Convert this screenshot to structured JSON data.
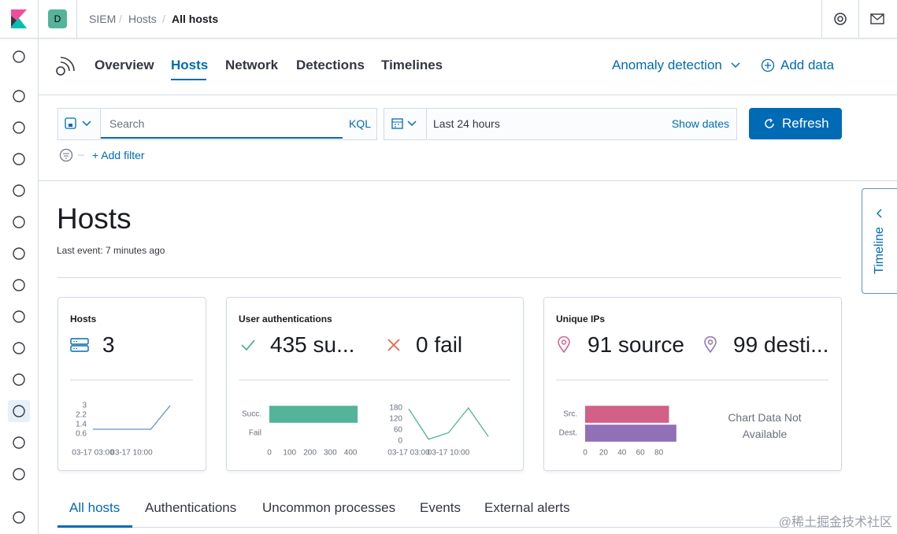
{
  "breadcrumbs": [
    "SIEM",
    "Hosts",
    "All hosts"
  ],
  "avatar": "D",
  "nav_tabs": [
    "Overview",
    "Hosts",
    "Network",
    "Detections",
    "Timelines"
  ],
  "header_actions": [
    "Anomaly detection",
    "Add data"
  ],
  "search": {
    "placeholder": "Search",
    "language": "KQL",
    "time_range": "Last 24 hours",
    "show_dates": "Show dates",
    "refresh": "Refresh",
    "add_filter": "+ Add filter"
  },
  "page": {
    "title": "Hosts",
    "subtitle": "Last event: 7 minutes ago"
  },
  "timeline_tab": "Timeline",
  "cards": [
    {
      "title": "Hosts",
      "stats": [
        "3"
      ],
      "charts": [
        {
          "type": "line",
          "categories": [
            "03-17 03:00",
            null,
            "03-17 10:00",
            null,
            null
          ],
          "values": [
            1,
            1,
            1,
            1,
            3
          ],
          "ylim": [
            0.6,
            3
          ],
          "yticks": [
            0.6,
            1.4,
            2.2,
            3
          ],
          "color": "#6092c0"
        }
      ]
    },
    {
      "title": "User authentications",
      "stats": [
        "435 su...",
        "0 fail"
      ],
      "charts": [
        {
          "type": "bar",
          "orientation": "horizontal",
          "categories": [
            "Succ.",
            "Fail"
          ],
          "values": [
            435,
            0
          ],
          "xlim": [
            0,
            450
          ],
          "xticks": [
            0,
            100,
            200,
            300,
            400
          ],
          "colors": [
            "#54b399",
            "#e7664c"
          ]
        },
        {
          "type": "line",
          "categories": [
            "03-17 03:00",
            null,
            "03-17 10:00",
            null,
            null
          ],
          "values": [
            175,
            10,
            45,
            180,
            25
          ],
          "ylim": [
            0,
            180
          ],
          "yticks": [
            0,
            60,
            120,
            180
          ],
          "color": "#54b399"
        }
      ]
    },
    {
      "title": "Unique IPs",
      "stats": [
        "91 source",
        "99 desti..."
      ],
      "charts": [
        {
          "type": "bar",
          "orientation": "horizontal",
          "categories": [
            "Src.",
            "Dest."
          ],
          "values": [
            91,
            99
          ],
          "xlim": [
            0,
            100
          ],
          "xticks": [
            0,
            20,
            40,
            60,
            80
          ],
          "colors": [
            "#d36086",
            "#9170b8"
          ]
        },
        {
          "type": "empty",
          "message": "Chart Data Not Available"
        }
      ]
    }
  ],
  "bottom_tabs": [
    "All hosts",
    "Authentications",
    "Uncommon processes",
    "Events",
    "External alerts"
  ],
  "watermark": "@稀土掘金技术社区"
}
